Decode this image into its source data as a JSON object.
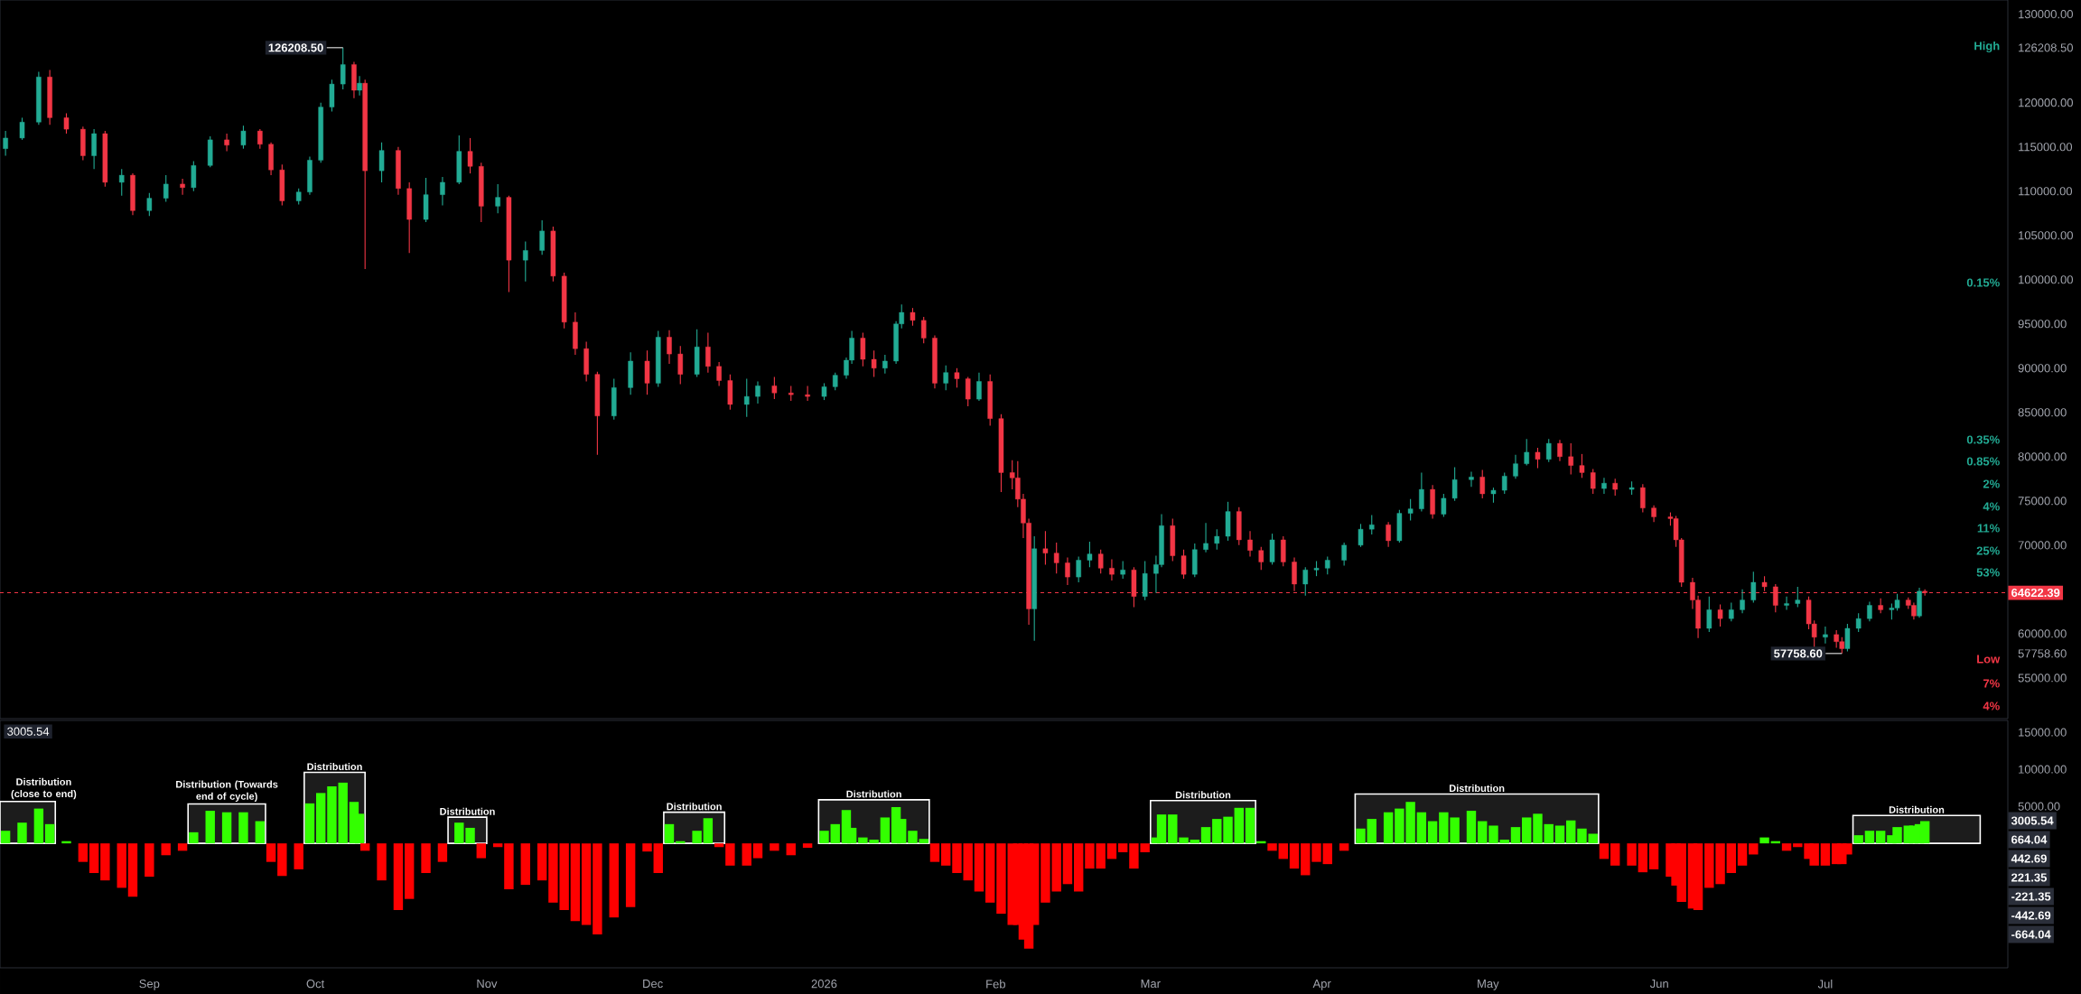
{
  "chart_data": [
    {
      "type": "candlestick",
      "x": [
        "2025-08-06",
        "2025-08-09",
        "2025-08-12",
        "2025-08-14",
        "2025-08-17",
        "2025-08-20",
        "2025-08-22",
        "2025-08-24",
        "2025-08-27",
        "2025-08-29",
        "2025-09-01",
        "2025-09-04",
        "2025-09-07",
        "2025-09-09",
        "2025-09-12",
        "2025-09-15",
        "2025-09-18",
        "2025-09-21",
        "2025-09-23",
        "2025-09-25",
        "2025-09-28",
        "2025-09-30",
        "2025-10-02",
        "2025-10-04",
        "2025-10-06",
        "2025-10-08",
        "2025-10-09",
        "2025-10-10",
        "2025-10-13",
        "2025-10-16",
        "2025-10-18",
        "2025-10-21",
        "2025-10-24",
        "2025-10-27",
        "2025-10-29",
        "2025-10-31",
        "2025-11-03",
        "2025-11-05",
        "2025-11-08",
        "2025-11-11",
        "2025-11-13",
        "2025-11-15",
        "2025-11-17",
        "2025-11-19",
        "2025-11-21",
        "2025-11-24",
        "2025-11-27",
        "2025-11-30",
        "2025-12-02",
        "2025-12-04",
        "2025-12-06",
        "2025-12-09",
        "2025-12-11",
        "2025-12-13",
        "2025-12-15",
        "2025-12-18",
        "2025-12-20",
        "2025-12-23",
        "2025-12-26",
        "2025-12-29",
        "2026-01-01",
        "2026-01-03",
        "2026-01-05",
        "2026-01-06",
        "2026-01-08",
        "2026-01-10",
        "2026-01-12",
        "2026-01-14",
        "2026-01-15",
        "2026-01-17",
        "2026-01-19",
        "2026-01-21",
        "2026-01-23",
        "2026-01-25",
        "2026-01-27",
        "2026-01-29",
        "2026-01-31",
        "2026-02-02",
        "2026-02-04",
        "2026-02-05",
        "2026-02-06",
        "2026-02-07",
        "2026-02-08",
        "2026-02-10",
        "2026-02-12",
        "2026-02-14",
        "2026-02-16",
        "2026-02-18",
        "2026-02-20",
        "2026-02-22",
        "2026-02-24",
        "2026-02-26",
        "2026-02-28",
        "2026-03-02",
        "2026-03-03",
        "2026-03-05",
        "2026-03-07",
        "2026-03-09",
        "2026-03-11",
        "2026-03-13",
        "2026-03-15",
        "2026-03-17",
        "2026-03-19",
        "2026-03-21",
        "2026-03-23",
        "2026-03-25",
        "2026-03-27",
        "2026-03-29",
        "2026-03-31",
        "2026-04-02",
        "2026-04-05",
        "2026-04-08",
        "2026-04-10",
        "2026-04-13",
        "2026-04-15",
        "2026-04-17",
        "2026-04-19",
        "2026-04-21",
        "2026-04-23",
        "2026-04-25",
        "2026-04-28",
        "2026-04-30",
        "2026-05-02",
        "2026-05-04",
        "2026-05-06",
        "2026-05-08",
        "2026-05-10",
        "2026-05-12",
        "2026-05-14",
        "2026-05-16",
        "2026-05-18",
        "2026-05-20",
        "2026-05-22",
        "2026-05-24",
        "2026-05-27",
        "2026-05-29",
        "2026-05-31",
        "2026-06-03",
        "2026-06-04",
        "2026-06-05",
        "2026-06-07",
        "2026-06-08",
        "2026-06-10",
        "2026-06-12",
        "2026-06-14",
        "2026-06-16",
        "2026-06-18",
        "2026-06-20",
        "2026-06-22",
        "2026-06-24",
        "2026-06-26",
        "2026-06-28",
        "2026-06-29",
        "2026-07-01",
        "2026-07-03",
        "2026-07-04",
        "2026-07-05",
        "2026-07-07",
        "2026-07-09",
        "2026-07-11",
        "2026-07-13",
        "2026-07-14",
        "2026-07-16",
        "2026-07-17",
        "2026-07-18",
        "2026-07-19"
      ],
      "ohlc": [
        [
          114800,
          116800,
          114000,
          116000
        ],
        [
          116000,
          118300,
          115800,
          117800
        ],
        [
          117800,
          123500,
          117500,
          122900
        ],
        [
          122900,
          123700,
          117500,
          118300
        ],
        [
          118300,
          118800,
          116500,
          117000
        ],
        [
          117000,
          117300,
          113500,
          114000
        ],
        [
          114000,
          117000,
          112500,
          116500
        ],
        [
          116500,
          116800,
          110500,
          111000
        ],
        [
          111000,
          112500,
          109500,
          111800
        ],
        [
          111800,
          112000,
          107300,
          107800
        ],
        [
          107800,
          109800,
          107200,
          109200
        ],
        [
          109200,
          111800,
          108800,
          110800
        ],
        [
          110800,
          111400,
          109600,
          110400
        ],
        [
          110400,
          113400,
          110000,
          112900
        ],
        [
          112900,
          116200,
          112700,
          115800
        ],
        [
          115800,
          116500,
          114500,
          115200
        ],
        [
          115200,
          117400,
          114800,
          116800
        ],
        [
          116800,
          117000,
          114800,
          115300
        ],
        [
          115300,
          115500,
          111800,
          112400
        ],
        [
          112400,
          113000,
          108400,
          108900
        ],
        [
          108900,
          110300,
          108500,
          109900
        ],
        [
          109900,
          113900,
          109600,
          113500
        ],
        [
          113500,
          120000,
          113200,
          119500
        ],
        [
          119500,
          122600,
          119000,
          122100
        ],
        [
          122100,
          126208.5,
          121500,
          124300
        ],
        [
          124300,
          124600,
          120500,
          121400
        ],
        [
          121400,
          123000,
          120800,
          122200
        ],
        [
          122200,
          122600,
          101200,
          112300
        ],
        [
          112300,
          115500,
          111000,
          114600
        ],
        [
          114600,
          115000,
          109600,
          110300
        ],
        [
          110300,
          111000,
          103000,
          106800
        ],
        [
          106800,
          111500,
          106500,
          109600
        ],
        [
          109600,
          111600,
          108400,
          111000
        ],
        [
          111000,
          116300,
          110800,
          114500
        ],
        [
          114500,
          116000,
          112000,
          112800
        ],
        [
          112800,
          113200,
          106500,
          108300
        ],
        [
          108300,
          110800,
          107500,
          109300
        ],
        [
          109300,
          109500,
          98600,
          102200
        ],
        [
          102200,
          104300,
          99800,
          103300
        ],
        [
          103300,
          106700,
          102800,
          105500
        ],
        [
          105500,
          106000,
          99800,
          100400
        ],
        [
          100400,
          100800,
          94500,
          95200
        ],
        [
          95200,
          96300,
          91500,
          92200
        ],
        [
          92200,
          93000,
          88500,
          89300
        ],
        [
          89300,
          89600,
          80200,
          84600
        ],
        [
          84600,
          88800,
          84200,
          87800
        ],
        [
          87800,
          91800,
          87000,
          90800
        ],
        [
          90800,
          92000,
          87000,
          88300
        ],
        [
          88300,
          94200,
          87900,
          93500
        ],
        [
          93500,
          94300,
          90500,
          91600
        ],
        [
          91600,
          92500,
          88200,
          89300
        ],
        [
          89300,
          94400,
          89000,
          92400
        ],
        [
          92400,
          94000,
          89500,
          90200
        ],
        [
          90200,
          90700,
          88000,
          88600
        ],
        [
          88600,
          89300,
          85300,
          85900
        ],
        [
          85900,
          88800,
          84500,
          86800
        ],
        [
          86800,
          88500,
          86000,
          88000
        ],
        [
          88000,
          89000,
          86500,
          87200
        ],
        [
          87200,
          88000,
          86300,
          87000
        ],
        [
          87000,
          88000,
          86300,
          86800
        ],
        [
          86800,
          88300,
          86400,
          87900
        ],
        [
          87900,
          89500,
          87500,
          89200
        ],
        [
          89200,
          91200,
          88800,
          90900
        ],
        [
          90900,
          94200,
          90500,
          93400
        ],
        [
          93400,
          94000,
          90200,
          91000
        ],
        [
          91000,
          92000,
          89000,
          90000
        ],
        [
          90000,
          91500,
          89400,
          90800
        ],
        [
          90800,
          95300,
          90500,
          95000
        ],
        [
          95000,
          97200,
          94500,
          96300
        ],
        [
          96300,
          96800,
          94800,
          95400
        ],
        [
          95400,
          95800,
          92800,
          93400
        ],
        [
          93400,
          93700,
          87700,
          88300
        ],
        [
          88300,
          90300,
          87500,
          89500
        ],
        [
          89500,
          90000,
          87800,
          88800
        ],
        [
          88800,
          89000,
          85700,
          86500
        ],
        [
          86500,
          89500,
          86300,
          88500
        ],
        [
          88500,
          89300,
          83500,
          84300
        ],
        [
          84300,
          84800,
          76000,
          78200
        ],
        [
          78200,
          79600,
          76300,
          77600
        ],
        [
          77600,
          79500,
          74300,
          75200
        ],
        [
          75200,
          75800,
          70800,
          72500
        ],
        [
          72500,
          73000,
          61000,
          62800
        ],
        [
          62800,
          71000,
          59200,
          69600
        ],
        [
          69600,
          71600,
          67800,
          69100
        ],
        [
          69100,
          70300,
          66800,
          68000
        ],
        [
          68000,
          68600,
          65500,
          66400
        ],
        [
          66400,
          68700,
          65800,
          68300
        ],
        [
          68300,
          70400,
          67500,
          69000
        ],
        [
          69000,
          69500,
          66800,
          67400
        ],
        [
          67400,
          68400,
          66000,
          66700
        ],
        [
          66700,
          68200,
          66200,
          67200
        ],
        [
          67200,
          67500,
          63000,
          64200
        ],
        [
          64200,
          68200,
          63800,
          66800
        ],
        [
          66800,
          68800,
          64600,
          67800
        ],
        [
          67800,
          73500,
          67500,
          72200
        ],
        [
          72200,
          73000,
          68200,
          68800
        ],
        [
          68800,
          69500,
          66200,
          66700
        ],
        [
          66700,
          70200,
          66400,
          69500
        ],
        [
          69500,
          72500,
          69200,
          70200
        ],
        [
          70200,
          71800,
          69500,
          71000
        ],
        [
          71000,
          74900,
          70500,
          73800
        ],
        [
          73800,
          74300,
          70000,
          70600
        ],
        [
          70600,
          71600,
          68700,
          69400
        ],
        [
          69400,
          69800,
          67200,
          68100
        ],
        [
          68100,
          71300,
          67800,
          70600
        ],
        [
          70600,
          71000,
          67600,
          68100
        ],
        [
          68100,
          68600,
          64800,
          65600
        ],
        [
          65600,
          67500,
          64300,
          67200
        ],
        [
          67200,
          68200,
          66500,
          67400
        ],
        [
          67400,
          68700,
          66700,
          68300
        ],
        [
          68300,
          70300,
          67700,
          70000
        ],
        [
          70000,
          72400,
          69800,
          71800
        ],
        [
          71800,
          73400,
          71200,
          72300
        ],
        [
          72300,
          72600,
          69800,
          70500
        ],
        [
          70500,
          74000,
          70300,
          73600
        ],
        [
          73600,
          75200,
          72800,
          74100
        ],
        [
          74100,
          78200,
          73800,
          76300
        ],
        [
          76300,
          76800,
          73000,
          73500
        ],
        [
          73500,
          75800,
          73200,
          75300
        ],
        [
          75300,
          78800,
          75000,
          77400
        ],
        [
          77400,
          78300,
          76600,
          77700
        ],
        [
          77700,
          78500,
          75300,
          75800
        ],
        [
          75800,
          76500,
          74800,
          76200
        ],
        [
          76200,
          78200,
          75800,
          77800
        ],
        [
          77800,
          80200,
          77500,
          79200
        ],
        [
          79200,
          82000,
          79000,
          80500
        ],
        [
          80500,
          81000,
          78700,
          79700
        ],
        [
          79700,
          82000,
          79400,
          81500
        ],
        [
          81500,
          81900,
          79500,
          80000
        ],
        [
          80000,
          81500,
          78000,
          79000
        ],
        [
          79000,
          80300,
          77600,
          78200
        ],
        [
          78200,
          78600,
          75800,
          76400
        ],
        [
          76400,
          77600,
          75800,
          77000
        ],
        [
          77000,
          77500,
          75600,
          76300
        ],
        [
          76300,
          77200,
          75700,
          76500
        ],
        [
          76500,
          76900,
          73700,
          74200
        ],
        [
          74200,
          74500,
          72600,
          73200
        ],
        [
          73200,
          73700,
          72200,
          73000
        ],
        [
          73000,
          73300,
          69800,
          70600
        ],
        [
          70600,
          70800,
          65300,
          65800
        ],
        [
          65800,
          66300,
          62800,
          63800
        ],
        [
          63800,
          64300,
          59500,
          60600
        ],
        [
          60600,
          64200,
          60200,
          62700
        ],
        [
          62700,
          63300,
          60800,
          61700
        ],
        [
          61700,
          63500,
          61400,
          62700
        ],
        [
          62700,
          65000,
          62300,
          63800
        ],
        [
          63800,
          67000,
          63500,
          65800
        ],
        [
          65800,
          66500,
          64800,
          65300
        ],
        [
          65300,
          65600,
          62400,
          63200
        ],
        [
          63200,
          64200,
          62700,
          63400
        ],
        [
          63400,
          65300,
          63000,
          63800
        ],
        [
          63800,
          64200,
          60500,
          61100
        ],
        [
          61100,
          61500,
          58400,
          59600
        ],
        [
          59600,
          60800,
          58900,
          59900
        ],
        [
          59900,
          60400,
          58400,
          59100
        ],
        [
          59100,
          59600,
          57758.6,
          58300
        ],
        [
          58300,
          61100,
          58000,
          60600
        ],
        [
          60600,
          62300,
          60200,
          61700
        ],
        [
          61700,
          63600,
          61400,
          63200
        ],
        [
          63200,
          64000,
          62300,
          62700
        ],
        [
          62700,
          63400,
          61600,
          62900
        ],
        [
          62900,
          64500,
          62600,
          63800
        ],
        [
          63800,
          64100,
          62800,
          63200
        ],
        [
          63200,
          63500,
          61600,
          62000
        ],
        [
          62000,
          65200,
          61800,
          64800
        ],
        [
          64800,
          65000,
          64300,
          64622.39
        ]
      ],
      "colors": [
        "#22ab94",
        "#22ab94",
        "#22ab94",
        "#f23645",
        "#f23645",
        "#f23645",
        "#22ab94",
        "#f23645",
        "#22ab94",
        "#f23645",
        "#22ab94",
        "#22ab94",
        "#f23645",
        "#22ab94",
        "#22ab94",
        "#f23645",
        "#22ab94",
        "#f23645",
        "#f23645",
        "#f23645",
        "#22ab94",
        "#22ab94",
        "#22ab94",
        "#22ab94",
        "#22ab94",
        "#f23645",
        "#22ab94",
        "#f23645",
        "#22ab94",
        "#f23645",
        "#f23645",
        "#22ab94",
        "#22ab94",
        "#22ab94",
        "#f23645",
        "#f23645",
        "#22ab94",
        "#f23645",
        "#22ab94",
        "#22ab94",
        "#f23645",
        "#f23645",
        "#f23645",
        "#f23645",
        "#f23645",
        "#22ab94",
        "#22ab94",
        "#f23645",
        "#22ab94",
        "#f23645",
        "#f23645",
        "#22ab94",
        "#f23645",
        "#f23645",
        "#f23645",
        "#22ab94",
        "#22ab94",
        "#f23645",
        "#f23645",
        "#f23645",
        "#22ab94",
        "#22ab94",
        "#22ab94",
        "#22ab94",
        "#f23645",
        "#f23645",
        "#22ab94",
        "#22ab94",
        "#22ab94",
        "#f23645",
        "#f23645",
        "#f23645",
        "#22ab94",
        "#f23645",
        "#f23645",
        "#22ab94",
        "#f23645",
        "#f23645",
        "#f23645",
        "#f23645",
        "#f23645",
        "#f23645",
        "#22ab94",
        "#f23645",
        "#f23645",
        "#f23645",
        "#22ab94",
        "#22ab94",
        "#f23645",
        "#f23645",
        "#22ab94",
        "#f23645",
        "#22ab94",
        "#22ab94",
        "#22ab94",
        "#f23645",
        "#f23645",
        "#22ab94",
        "#22ab94",
        "#22ab94",
        "#22ab94",
        "#f23645",
        "#f23645",
        "#f23645",
        "#22ab94",
        "#f23645",
        "#f23645",
        "#22ab94",
        "#22ab94",
        "#22ab94",
        "#22ab94",
        "#22ab94",
        "#22ab94",
        "#f23645",
        "#22ab94",
        "#22ab94",
        "#22ab94",
        "#f23645",
        "#22ab94",
        "#22ab94",
        "#22ab94",
        "#f23645",
        "#22ab94",
        "#22ab94",
        "#22ab94",
        "#22ab94",
        "#f23645",
        "#22ab94",
        "#f23645",
        "#f23645",
        "#f23645",
        "#f23645",
        "#22ab94",
        "#f23645",
        "#22ab94",
        "#f23645",
        "#f23645",
        "#f23645",
        "#f23645",
        "#f23645",
        "#f23645",
        "#f23645",
        "#22ab94",
        "#f23645",
        "#22ab94",
        "#22ab94",
        "#22ab94",
        "#f23645",
        "#f23645",
        "#22ab94",
        "#22ab94",
        "#f23645",
        "#f23645",
        "#22ab94",
        "#f23645",
        "#f23645",
        "#22ab94",
        "#22ab94",
        "#22ab94",
        "#f23645",
        "#22ab94",
        "#22ab94",
        "#f23645",
        "#f23645",
        "#22ab94",
        "#f23645"
      ],
      "xlim": [
        "2025-08-05",
        "2026-08-03"
      ],
      "ylim": [
        50400,
        131600
      ],
      "yticks": [
        {
          "value": 130000,
          "label": "130000.00"
        },
        {
          "value": 126208.5,
          "label": "126208.50"
        },
        {
          "value": 120000,
          "label": "120000.00"
        },
        {
          "value": 115000,
          "label": "115000.00"
        },
        {
          "value": 110000,
          "label": "110000.00"
        },
        {
          "value": 105000,
          "label": "105000.00"
        },
        {
          "value": 100000,
          "label": "100000.00"
        },
        {
          "value": 95000,
          "label": "95000.00"
        },
        {
          "value": 90000,
          "label": "90000.00"
        },
        {
          "value": 85000,
          "label": "85000.00"
        },
        {
          "value": 80000,
          "label": "80000.00"
        },
        {
          "value": 75000,
          "label": "75000.00"
        },
        {
          "value": 70000,
          "label": "70000.00"
        },
        {
          "value": 60000,
          "label": "60000.00"
        },
        {
          "value": 57758.6,
          "label": "57758.60"
        },
        {
          "value": 55000,
          "label": "55000.00"
        }
      ],
      "ref_lines": [
        {
          "axis": "y",
          "value": 64622.39,
          "label": "64622.39",
          "color": "#f23645",
          "line_style": "dashed"
        }
      ],
      "annotations": [
        {
          "text": "126208.50",
          "x": "2025-10-06",
          "y": 126208.5
        },
        {
          "text": "57758.60",
          "x": "2026-07-04",
          "y": 57758.6
        },
        "High",
        "0.15%",
        "0.35%",
        "0.85%",
        "2%",
        "4%",
        "11%",
        "25%",
        "53%",
        "Low",
        "7%",
        "4%"
      ],
      "tick_labels": "y"
    },
    {
      "type": "bar",
      "title": "3005.54",
      "x": [
        "2025-08-06",
        "2025-08-09",
        "2025-08-12",
        "2025-08-14",
        "2025-08-17",
        "2025-08-20",
        "2025-08-22",
        "2025-08-24",
        "2025-08-27",
        "2025-08-29",
        "2025-09-01",
        "2025-09-04",
        "2025-09-07",
        "2025-09-09",
        "2025-09-12",
        "2025-09-15",
        "2025-09-18",
        "2025-09-21",
        "2025-09-23",
        "2025-09-25",
        "2025-09-28",
        "2025-09-30",
        "2025-10-02",
        "2025-10-04",
        "2025-10-06",
        "2025-10-08",
        "2025-10-09",
        "2025-10-10",
        "2025-10-13",
        "2025-10-16",
        "2025-10-18",
        "2025-10-21",
        "2025-10-24",
        "2025-10-27",
        "2025-10-29",
        "2025-10-31",
        "2025-11-03",
        "2025-11-05",
        "2025-11-08",
        "2025-11-11",
        "2025-11-13",
        "2025-11-15",
        "2025-11-17",
        "2025-11-19",
        "2025-11-21",
        "2025-11-24",
        "2025-11-27",
        "2025-11-30",
        "2025-12-02",
        "2025-12-04",
        "2025-12-06",
        "2025-12-09",
        "2025-12-11",
        "2025-12-13",
        "2025-12-15",
        "2025-12-18",
        "2025-12-20",
        "2025-12-23",
        "2025-12-26",
        "2025-12-29",
        "2026-01-01",
        "2026-01-03",
        "2026-01-05",
        "2026-01-06",
        "2026-01-08",
        "2026-01-10",
        "2026-01-12",
        "2026-01-14",
        "2026-01-15",
        "2026-01-17",
        "2026-01-19",
        "2026-01-21",
        "2026-01-23",
        "2026-01-25",
        "2026-01-27",
        "2026-01-29",
        "2026-01-31",
        "2026-02-02",
        "2026-02-04",
        "2026-02-05",
        "2026-02-06",
        "2026-02-07",
        "2026-02-08",
        "2026-02-10",
        "2026-02-12",
        "2026-02-14",
        "2026-02-16",
        "2026-02-18",
        "2026-02-20",
        "2026-02-22",
        "2026-02-24",
        "2026-02-26",
        "2026-02-28",
        "2026-03-02",
        "2026-03-03",
        "2026-03-05",
        "2026-03-07",
        "2026-03-09",
        "2026-03-11",
        "2026-03-13",
        "2026-03-15",
        "2026-03-17",
        "2026-03-19",
        "2026-03-21",
        "2026-03-23",
        "2026-03-25",
        "2026-03-27",
        "2026-03-29",
        "2026-03-31",
        "2026-04-02",
        "2026-04-05",
        "2026-04-08",
        "2026-04-10",
        "2026-04-13",
        "2026-04-15",
        "2026-04-17",
        "2026-04-19",
        "2026-04-21",
        "2026-04-23",
        "2026-04-25",
        "2026-04-28",
        "2026-04-30",
        "2026-05-02",
        "2026-05-04",
        "2026-05-06",
        "2026-05-08",
        "2026-05-10",
        "2026-05-12",
        "2026-05-14",
        "2026-05-16",
        "2026-05-18",
        "2026-05-20",
        "2026-05-22",
        "2026-05-24",
        "2026-05-27",
        "2026-05-29",
        "2026-05-31",
        "2026-06-03",
        "2026-06-04",
        "2026-06-05",
        "2026-06-07",
        "2026-06-08",
        "2026-06-10",
        "2026-06-12",
        "2026-06-14",
        "2026-06-16",
        "2026-06-18",
        "2026-06-20",
        "2026-06-22",
        "2026-06-24",
        "2026-06-26",
        "2026-06-28",
        "2026-06-29",
        "2026-07-01",
        "2026-07-03",
        "2026-07-04",
        "2026-07-05",
        "2026-07-07",
        "2026-07-09",
        "2026-07-11",
        "2026-07-13",
        "2026-07-14",
        "2026-07-16",
        "2026-07-17",
        "2026-07-18",
        "2026-07-19"
      ],
      "series": [
        {
          "color": "#33ff00",
          "values": [
            1700,
            2800,
            4700,
            2600,
            300,
            null,
            null,
            null,
            null,
            null,
            null,
            null,
            null,
            1500,
            4400,
            4200,
            4200,
            3000,
            null,
            null,
            null,
            5400,
            6800,
            7700,
            8200,
            5600,
            4000,
            null,
            null,
            null,
            null,
            null,
            null,
            2800,
            2100,
            null,
            null,
            null,
            null,
            null,
            null,
            null,
            null,
            null,
            null,
            null,
            null,
            null,
            null,
            2600,
            300,
            1700,
            3400,
            null,
            null,
            null,
            null,
            null,
            null,
            null,
            1700,
            2600,
            4500,
            2100,
            800,
            500,
            3500,
            4900,
            3300,
            1700,
            600,
            null,
            null,
            null,
            null,
            null,
            null,
            null,
            null,
            null,
            null,
            null,
            null,
            null,
            null,
            null,
            null,
            null,
            null,
            null,
            null,
            null,
            null,
            800,
            3900,
            3900,
            800,
            500,
            2200,
            3300,
            3600,
            4800,
            4800,
            300,
            null,
            null,
            null,
            null,
            null,
            null,
            null,
            2000,
            3300,
            4200,
            4700,
            5600,
            4200,
            3000,
            4200,
            3500,
            4400,
            3000,
            2400,
            500,
            2200,
            3500,
            4000,
            2600,
            2400,
            3100,
            2000,
            1300,
            null,
            null,
            null,
            null,
            null,
            null,
            null,
            null,
            null,
            null,
            null,
            null,
            null,
            null,
            null,
            800,
            300,
            null,
            null,
            null,
            null,
            null,
            null,
            null,
            null,
            1100,
            1700,
            1700,
            1100,
            2200,
            2400,
            2400,
            2600,
            3005.54
          ]
        },
        {
          "color": "#ff0000",
          "values": [
            null,
            null,
            null,
            null,
            null,
            -2500,
            -4000,
            -5000,
            -6000,
            -7200,
            -4500,
            -1600,
            -1000,
            null,
            null,
            null,
            null,
            null,
            -2500,
            -4400,
            -3500,
            null,
            null,
            null,
            null,
            null,
            null,
            -1000,
            -5000,
            -9000,
            -7500,
            -4000,
            -2500,
            null,
            null,
            -2000,
            -500,
            -6200,
            -5600,
            -5000,
            -8000,
            -9000,
            -10500,
            -11000,
            -12300,
            -10000,
            -8600,
            -1100,
            -4000,
            null,
            null,
            null,
            null,
            -500,
            -3000,
            -3000,
            -2000,
            -1000,
            -1600,
            -600,
            null,
            null,
            null,
            null,
            null,
            null,
            null,
            null,
            null,
            null,
            null,
            -2500,
            -3000,
            -4000,
            -5000,
            -6500,
            -8000,
            -9500,
            -11000,
            -11000,
            -13000,
            -14200,
            -11000,
            -8000,
            -6500,
            -5500,
            -6500,
            -3400,
            -3400,
            -2100,
            -1200,
            -3400,
            -1200,
            null,
            null,
            null,
            null,
            null,
            null,
            null,
            null,
            null,
            null,
            null,
            -1000,
            -2100,
            -3400,
            -4300,
            -2500,
            -2800,
            -1000,
            null,
            null,
            null,
            null,
            null,
            null,
            null,
            null,
            null,
            null,
            null,
            null,
            null,
            null,
            null,
            null,
            null,
            null,
            null,
            null,
            null,
            -2100,
            -3000,
            -3000,
            -3900,
            -3500,
            -4500,
            -5700,
            -7900,
            -8800,
            -9000,
            -6000,
            -5500,
            -4000,
            -3000,
            -1500,
            null,
            null,
            -1000,
            -500,
            -2100,
            -3000,
            -3000,
            -2800,
            -2800,
            -1500,
            null,
            null,
            null,
            null,
            null,
            null,
            null,
            null,
            null
          ]
        }
      ],
      "bands": [
        {
          "axis": "x",
          "from": "2025-08-05",
          "to": "2025-08-15",
          "label": "Distribution (close to end)",
          "color": "#1c1c1c"
        },
        {
          "axis": "x",
          "from": "2025-09-08",
          "to": "2025-09-22",
          "label": "Distribution (Towards end of cycle)",
          "color": "#1c1c1c"
        },
        {
          "axis": "x",
          "from": "2025-09-29",
          "to": "2025-10-10",
          "label": "Distribution",
          "color": "#1c1c1c"
        },
        {
          "axis": "x",
          "from": "2025-10-25",
          "to": "2025-11-01",
          "label": "Distribution",
          "color": "#1c1c1c"
        },
        {
          "axis": "x",
          "from": "2025-12-03",
          "to": "2025-12-14",
          "label": "Distribution",
          "color": "#1c1c1c"
        },
        {
          "axis": "x",
          "from": "2025-12-31",
          "to": "2026-01-20",
          "label": "Distribution",
          "color": "#1c1c1c"
        },
        {
          "axis": "x",
          "from": "2026-03-01",
          "to": "2026-03-20",
          "label": "Distribution",
          "color": "#1c1c1c"
        },
        {
          "axis": "x",
          "from": "2026-04-07",
          "to": "2026-05-21",
          "label": "Distribution",
          "color": "#1c1c1c"
        },
        {
          "axis": "x",
          "from": "2026-07-06",
          "to": "2026-07-29",
          "label": "Distribution",
          "color": "#1c1c1c"
        }
      ],
      "xlim": [
        "2025-08-05",
        "2026-08-03"
      ],
      "ylim": [
        -16800,
        16600
      ],
      "xticks": [
        {
          "value": "2025-09-01",
          "label": "Sep"
        },
        {
          "value": "2025-10-01",
          "label": "Oct"
        },
        {
          "value": "2025-11-01",
          "label": "Nov"
        },
        {
          "value": "2025-12-01",
          "label": "Dec"
        },
        {
          "value": "2026-01-01",
          "label": "2026"
        },
        {
          "value": "2026-02-01",
          "label": "Feb"
        },
        {
          "value": "2026-03-01",
          "label": "Mar"
        },
        {
          "value": "2026-04-01",
          "label": "Apr"
        },
        {
          "value": "2026-05-01",
          "label": "May"
        },
        {
          "value": "2026-06-01",
          "label": "Jun"
        },
        {
          "value": "2026-07-01",
          "label": "Jul"
        }
      ],
      "yticks": [
        {
          "value": 15000,
          "label": "15000.00"
        },
        {
          "value": 10000,
          "label": "10000.00"
        },
        {
          "value": 5000,
          "label": "5000.00"
        }
      ],
      "annotations": [
        "3005.54",
        "664.04",
        "442.69",
        "221.35",
        "-221.35",
        "-442.69",
        "-664.04"
      ]
    }
  ]
}
